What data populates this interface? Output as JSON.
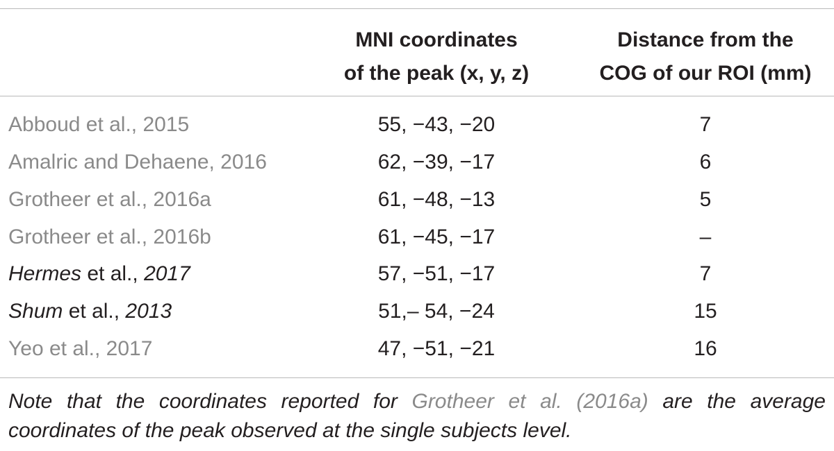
{
  "table": {
    "header": [
      [
        "MNI coordinates",
        "of the peak (x, y, z)"
      ],
      [
        "Distance from the",
        "COG of our ROI (mm)"
      ]
    ],
    "rows": [
      {
        "study": [
          "Abboud et al., 2015"
        ],
        "coordinates": "55, −43, −20",
        "distance": 7
      },
      {
        "study": [
          "Amalric and Dehaene, 2016"
        ],
        "coordinates": "62, −39, −17",
        "distance": 6
      },
      {
        "study": [
          "Grotheer et al., 2016a"
        ],
        "coordinates": "61, −48, −13",
        "distance": 5
      },
      {
        "study": [
          "Grotheer et al., 2016b"
        ],
        "coordinates": "61, −45, −17",
        "distance": "–"
      },
      {
        "study": [
          "Hermes",
          " et al., ",
          "2017"
        ],
        "coordinates": "57, −51, −17",
        "distance": 7
      },
      {
        "study": [
          "Shum",
          " et al., ",
          "2013"
        ],
        "coordinates": "51,– 54, −24",
        "distance": 15
      },
      {
        "study": [
          "Yeo et al., 2017"
        ],
        "coordinates": "47, −51, −21",
        "distance": 16
      }
    ],
    "note": [
      "Note that the coordinates reported for ",
      "Grotheer et al. (2016a)",
      " are the average coordinates of the peak observed at the single subjects level."
    ]
  }
}
